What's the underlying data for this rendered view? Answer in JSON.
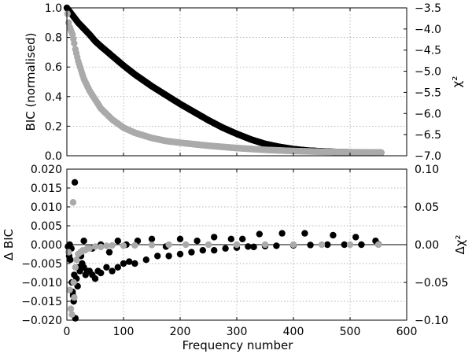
{
  "chart_data": [
    {
      "type": "scatter",
      "panel": "top",
      "xlim": [
        0,
        600
      ],
      "ylim": [
        0.0,
        1.0
      ],
      "y2lim": [
        -7.0,
        -3.5
      ],
      "ylabel": "BIC (normalised)",
      "y2label": "χ²",
      "xticks": [
        "0",
        "100",
        "200",
        "300",
        "400",
        "500",
        "600"
      ],
      "yticks": [
        0.0,
        0.2,
        0.4,
        0.6,
        0.8,
        1.0
      ],
      "yticklabels": [
        "0.0",
        "0.2",
        "0.4",
        "0.6",
        "0.8",
        "1.0"
      ],
      "y2ticks": [
        -7.0,
        -6.5,
        -6.0,
        -5.5,
        -5.0,
        -4.5,
        -4.0,
        -3.5
      ],
      "y2ticklabels": [
        "−7.0",
        "−6.5",
        "−6.0",
        "−5.5",
        "−5.0",
        "−4.5",
        "−4.0",
        "−3.5"
      ],
      "grid": true,
      "series": [
        {
          "color": "#000000",
          "axis": "left",
          "x": [
            0,
            5,
            10,
            15,
            20,
            30,
            40,
            50,
            60,
            80,
            100,
            120,
            150,
            175,
            200,
            225,
            250,
            275,
            300,
            325,
            350,
            375,
            400,
            425,
            450,
            475,
            500,
            525,
            555
          ],
          "y": [
            1.0,
            0.975,
            0.95,
            0.925,
            0.9,
            0.86,
            0.82,
            0.775,
            0.74,
            0.675,
            0.61,
            0.55,
            0.47,
            0.41,
            0.35,
            0.295,
            0.24,
            0.19,
            0.148,
            0.11,
            0.08,
            0.06,
            0.045,
            0.035,
            0.03,
            0.026,
            0.023,
            0.022,
            0.021
          ]
        },
        {
          "color": "#aaaaaa",
          "axis": "left",
          "x": [
            1,
            3,
            5,
            8,
            10,
            13,
            15,
            20,
            25,
            30,
            40,
            50,
            60,
            80,
            100,
            120,
            150,
            175,
            200,
            250,
            300,
            350,
            400,
            450,
            500,
            555
          ],
          "y": [
            0.96,
            0.9,
            0.87,
            0.84,
            0.82,
            0.76,
            0.72,
            0.64,
            0.58,
            0.52,
            0.44,
            0.38,
            0.32,
            0.245,
            0.19,
            0.155,
            0.12,
            0.1,
            0.088,
            0.068,
            0.052,
            0.04,
            0.032,
            0.027,
            0.024,
            0.022
          ]
        }
      ]
    },
    {
      "type": "scatter",
      "panel": "bottom",
      "xlim": [
        0,
        600
      ],
      "ylim": [
        -0.02,
        0.02
      ],
      "y2lim": [
        -0.1,
        0.1
      ],
      "xlabel": "Frequency number",
      "ylabel": "Δ BIC",
      "y2label": "Δχ²",
      "xticks": [
        "0",
        "100",
        "200",
        "300",
        "400",
        "500",
        "600"
      ],
      "yticks": [
        -0.02,
        -0.015,
        -0.01,
        -0.005,
        0.0,
        0.005,
        0.01,
        0.015,
        0.02
      ],
      "yticklabels": [
        "−0.020",
        "−0.015",
        "−0.010",
        "−0.005",
        "0.000",
        "0.005",
        "0.010",
        "0.015",
        "0.020"
      ],
      "y2ticks": [
        -0.1,
        -0.05,
        0.0,
        0.05,
        0.1
      ],
      "y2ticklabels": [
        "−0.10",
        "−0.05",
        "0.00",
        "0.05",
        "0.10"
      ],
      "grid": true,
      "zero_line": true,
      "series": [
        {
          "color": "#000000",
          "axis": "left",
          "x": [
            2,
            4,
            5,
            6,
            8,
            9,
            10,
            11,
            12,
            13,
            14,
            15,
            17,
            19,
            21,
            23,
            25,
            27,
            30,
            33,
            36,
            40,
            45,
            50,
            55,
            60,
            70,
            80,
            90,
            100,
            110,
            120,
            140,
            160,
            180,
            200,
            220,
            240,
            260,
            280,
            300,
            320,
            330,
            350,
            370,
            400,
            430,
            460,
            490,
            520,
            550,
            30,
            45,
            60,
            75,
            90,
            105,
            125,
            150,
            175,
            200,
            230,
            260,
            290,
            310,
            340,
            380,
            420,
            470,
            510,
            545
          ],
          "y": [
            -0.0005,
            -0.003,
            0.0,
            -0.004,
            -0.001,
            -0.01,
            -0.0125,
            -0.0135,
            -0.015,
            -0.008,
            0.0165,
            -0.0195,
            -0.009,
            -0.011,
            -0.006,
            -0.007,
            -0.003,
            -0.005,
            -0.006,
            -0.008,
            -0.007,
            -0.007,
            -0.008,
            -0.009,
            -0.007,
            -0.0075,
            -0.006,
            -0.007,
            -0.006,
            -0.005,
            -0.0045,
            -0.005,
            -0.004,
            -0.003,
            -0.003,
            -0.0025,
            -0.002,
            -0.0015,
            -0.0015,
            -0.001,
            -0.0008,
            -0.0005,
            -0.0006,
            -0.0004,
            -0.0003,
            -0.0002,
            -0.0001,
            0.0,
            0.0,
            0.0,
            0.0001,
            0.001,
            -0.001,
            0.0,
            -0.002,
            0.001,
            0.0,
            0.001,
            0.0015,
            -0.0005,
            0.0015,
            0.001,
            0.002,
            0.0015,
            0.0015,
            0.0028,
            0.003,
            0.003,
            0.0025,
            0.002,
            0.001
          ]
        },
        {
          "color": "#aaaaaa",
          "axis": "left",
          "x": [
            3,
            5,
            7,
            9,
            11,
            12,
            13,
            15,
            17,
            20,
            24,
            28,
            32,
            36,
            40,
            50,
            60,
            70,
            80,
            100,
            120,
            150,
            180,
            210,
            250,
            300,
            350,
            400,
            450,
            500,
            550
          ],
          "y": [
            -0.002,
            -0.012,
            -0.017,
            -0.0185,
            0.0112,
            -0.01,
            -0.014,
            -0.006,
            -0.004,
            -0.0025,
            -0.002,
            -0.0015,
            -0.0015,
            -0.001,
            -0.001,
            -0.0005,
            -0.0006,
            -0.0003,
            -0.0002,
            -0.0003,
            -0.0002,
            -0.0001,
            0.0,
            0.0,
            0.0,
            0.0,
            0.0,
            0.0,
            0.0,
            0.0,
            0.0
          ]
        }
      ]
    }
  ]
}
